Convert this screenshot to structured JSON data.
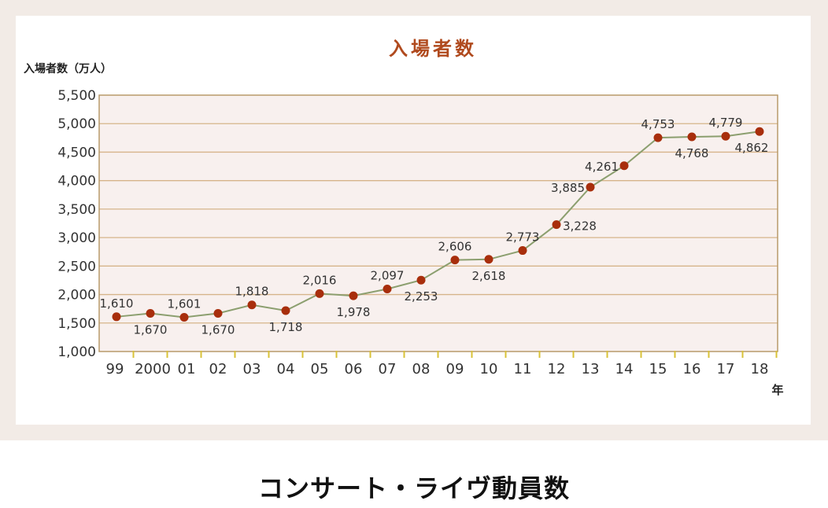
{
  "chart_data": {
    "type": "line",
    "title": "入場者数",
    "ylabel": "入場者数（万人）",
    "xunit": "年",
    "ylim": [
      1000,
      5500
    ],
    "yticks": [
      1000,
      1500,
      2000,
      2500,
      3000,
      3500,
      4000,
      4500,
      5000,
      5500
    ],
    "ytick_labels": [
      "1,000",
      "1,500",
      "2,000",
      "2,500",
      "3,000",
      "3,500",
      "4,000",
      "4,500",
      "5,000",
      "5,500"
    ],
    "categories": [
      "99",
      "2000",
      "01",
      "02",
      "03",
      "04",
      "05",
      "06",
      "07",
      "08",
      "09",
      "10",
      "11",
      "12",
      "13",
      "14",
      "15",
      "16",
      "17",
      "18"
    ],
    "series": [
      {
        "values": [
          1610,
          1670,
          1601,
          1670,
          1818,
          1718,
          2016,
          1978,
          2097,
          2253,
          2606,
          2618,
          2773,
          3228,
          3885,
          4261,
          4753,
          4768,
          4779,
          4862
        ],
        "labels": [
          "1,610",
          "1,670",
          "1,601",
          "1,670",
          "1,818",
          "1,718",
          "2,016",
          "1,978",
          "2,097",
          "2,253",
          "2,606",
          "2,618",
          "2,773",
          "3,228",
          "3,885",
          "4,261",
          "4,753",
          "4,768",
          "4,779",
          "4,862"
        ],
        "label_pos": [
          "above",
          "below",
          "above",
          "below",
          "above",
          "below",
          "above",
          "below",
          "above",
          "below",
          "above",
          "below",
          "above",
          "right",
          "left",
          "left",
          "above",
          "below",
          "above",
          "below"
        ],
        "color": "#a82e0c",
        "line_color": "#8c9f6f"
      }
    ],
    "grid": true,
    "colors": {
      "plot_bg": "#f8f0ee",
      "gridline": "#d6b48a",
      "frame": "#b89a6a",
      "tick_mark": "#d8c238"
    }
  },
  "caption": "コンサート・ライヴ動員数"
}
